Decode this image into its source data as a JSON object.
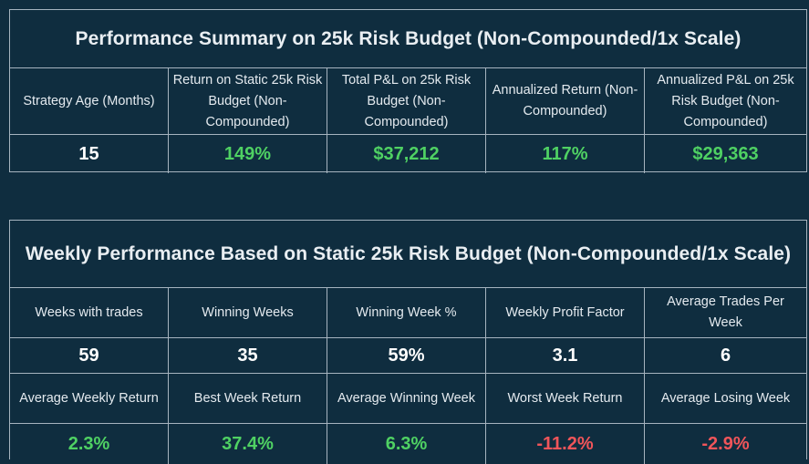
{
  "summary": {
    "title": "Performance Summary on 25k Risk Budget (Non-Compounded/1x Scale)",
    "headers": [
      "Strategy Age (Months)",
      "Return on Static 25k Risk Budget (Non-Compounded)",
      "Total P&L on 25k Risk Budget (Non-Compounded)",
      "Annualized Return (Non-Compounded)",
      "Annualized P&L on 25k Risk Budget (Non-Compounded)"
    ],
    "values": [
      "15",
      "149%",
      "$37,212",
      "117%",
      "$29,363"
    ]
  },
  "weekly": {
    "title": "Weekly Performance Based on Static 25k Risk Budget (Non-Compounded/1x Scale)",
    "headers_row1": [
      "Weeks with trades",
      "Winning Weeks",
      "Winning Week %",
      "Weekly Profit Factor",
      "Average Trades Per Week"
    ],
    "values_row1": [
      "59",
      "35",
      "59%",
      "3.1",
      "6"
    ],
    "headers_row2": [
      "Average Weekly Return",
      "Best Week Return",
      "Average Winning Week",
      "Worst Week Return",
      "Average Losing Week"
    ],
    "values_row2": [
      "2.3%",
      "37.4%",
      "6.3%",
      "-11.2%",
      "-2.9%"
    ]
  },
  "colors": {
    "background": "#0f2d3f",
    "border": "#a6b4bf",
    "positive": "#4fd163",
    "negative": "#f0555a",
    "neutral": "#ffffff"
  }
}
